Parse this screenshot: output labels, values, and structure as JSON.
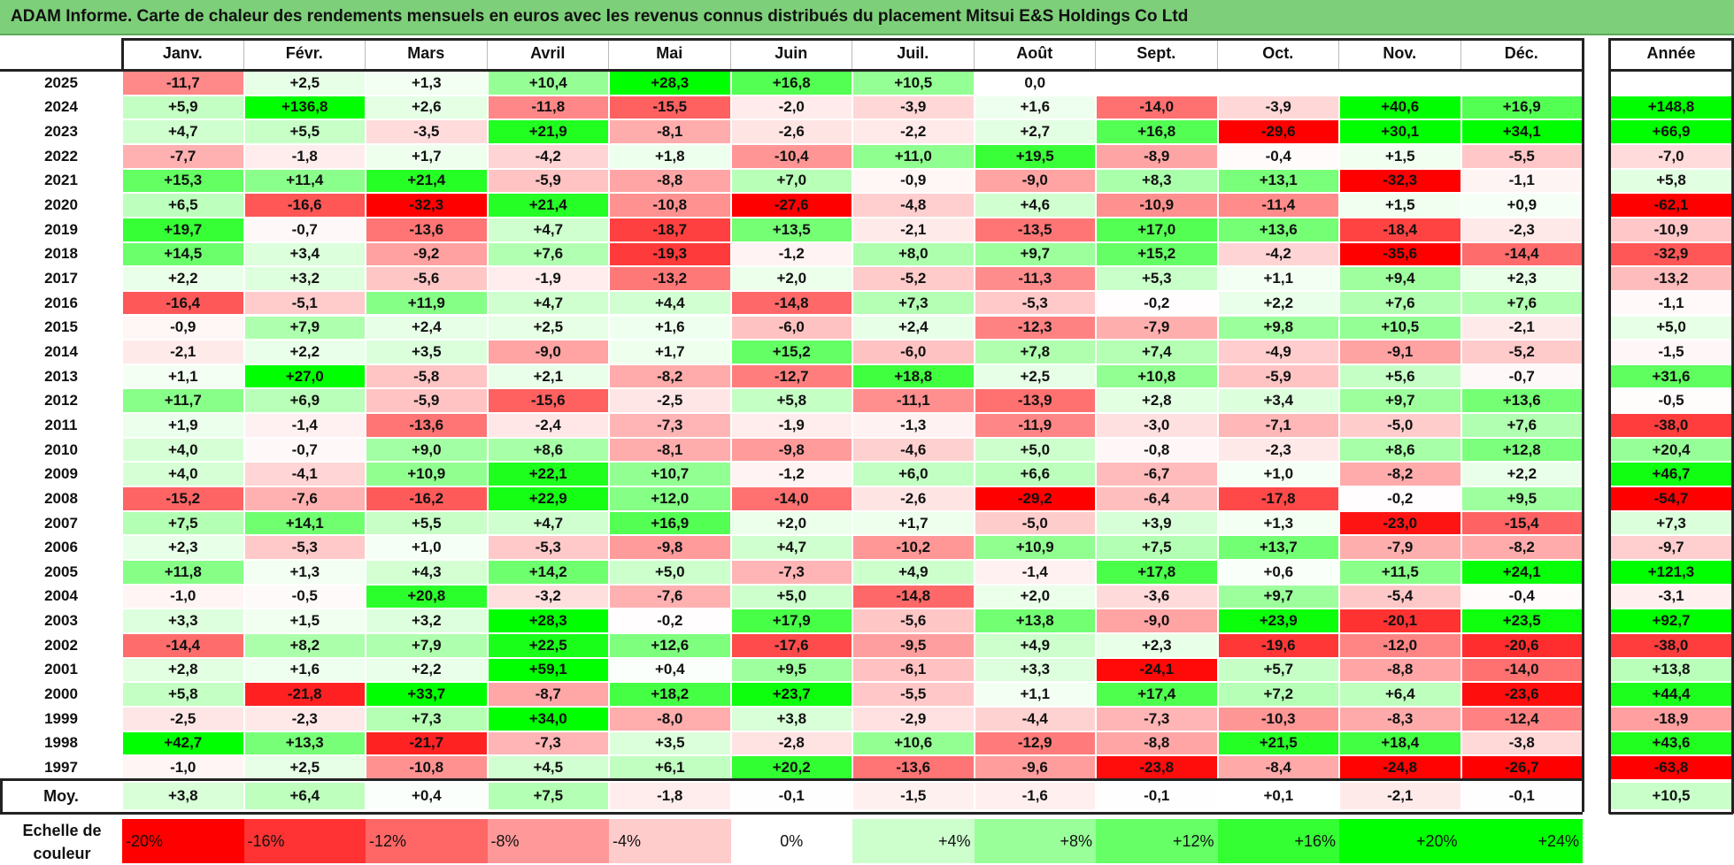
{
  "title": "ADAM Informe. Carte de chaleur des rendements mensuels en euros avec les revenus connus distribués du placement Mitsui E&S Holdings Co Ltd",
  "colors": {
    "title_bar": "#7dcf79",
    "max_negative": "#ff0000",
    "neutral": "#ffffff",
    "max_positive": "#00ff00"
  },
  "year_header": "Année",
  "avg_label": "Moy.",
  "scale_title": "Echelle de couleur",
  "chart_data": {
    "type": "heatmap",
    "title": "ADAM Informe. Carte de chaleur des rendements mensuels en euros avec les revenus connus distribués du placement Mitsui E&S Holdings Co Ltd",
    "columns": [
      "Janv.",
      "Févr.",
      "Mars",
      "Avril",
      "Mai",
      "Juin",
      "Juil.",
      "Août",
      "Sept.",
      "Oct.",
      "Nov.",
      "Déc."
    ],
    "rows": [
      {
        "year": "2025",
        "values": [
          "-11,7",
          "+2,5",
          "+1,3",
          "+10,4",
          "+28,3",
          "+16,8",
          "+10,5",
          "0,0",
          "",
          "",
          "",
          ""
        ],
        "annual": ""
      },
      {
        "year": "2024",
        "values": [
          "+5,9",
          "+136,8",
          "+2,6",
          "-11,8",
          "-15,5",
          "-2,0",
          "-3,9",
          "+1,6",
          "-14,0",
          "-3,9",
          "+40,6",
          "+16,9"
        ],
        "annual": "+148,8"
      },
      {
        "year": "2023",
        "values": [
          "+4,7",
          "+5,5",
          "-3,5",
          "+21,9",
          "-8,1",
          "-2,6",
          "-2,2",
          "+2,7",
          "+16,8",
          "-29,6",
          "+30,1",
          "+34,1"
        ],
        "annual": "+66,9"
      },
      {
        "year": "2022",
        "values": [
          "-7,7",
          "-1,8",
          "+1,7",
          "-4,2",
          "+1,8",
          "-10,4",
          "+11,0",
          "+19,5",
          "-8,9",
          "-0,4",
          "+1,5",
          "-5,5"
        ],
        "annual": "-7,0"
      },
      {
        "year": "2021",
        "values": [
          "+15,3",
          "+11,4",
          "+21,4",
          "-5,9",
          "-8,8",
          "+7,0",
          "-0,9",
          "-9,0",
          "+8,3",
          "+13,1",
          "-32,3",
          "-1,1"
        ],
        "annual": "+5,8"
      },
      {
        "year": "2020",
        "values": [
          "+6,5",
          "-16,6",
          "-32,3",
          "+21,4",
          "-10,8",
          "-27,6",
          "-4,8",
          "+4,6",
          "-10,9",
          "-11,4",
          "+1,5",
          "+0,9"
        ],
        "annual": "-62,1"
      },
      {
        "year": "2019",
        "values": [
          "+19,7",
          "-0,7",
          "-13,6",
          "+4,7",
          "-18,7",
          "+13,5",
          "-2,1",
          "-13,5",
          "+17,0",
          "+13,6",
          "-18,4",
          "-2,3"
        ],
        "annual": "-10,9"
      },
      {
        "year": "2018",
        "values": [
          "+14,5",
          "+3,4",
          "-9,2",
          "+7,6",
          "-19,3",
          "-1,2",
          "+8,0",
          "+9,7",
          "+15,2",
          "-4,2",
          "-35,6",
          "-14,4"
        ],
        "annual": "-32,9"
      },
      {
        "year": "2017",
        "values": [
          "+2,2",
          "+3,2",
          "-5,6",
          "-1,9",
          "-13,2",
          "+2,0",
          "-5,2",
          "-11,3",
          "+5,3",
          "+1,1",
          "+9,4",
          "+2,3"
        ],
        "annual": "-13,2"
      },
      {
        "year": "2016",
        "values": [
          "-16,4",
          "-5,1",
          "+11,9",
          "+4,7",
          "+4,4",
          "-14,8",
          "+7,3",
          "-5,3",
          "-0,2",
          "+2,2",
          "+7,6",
          "+7,6"
        ],
        "annual": "-1,1"
      },
      {
        "year": "2015",
        "values": [
          "-0,9",
          "+7,9",
          "+2,4",
          "+2,5",
          "+1,6",
          "-6,0",
          "+2,4",
          "-12,3",
          "-7,9",
          "+9,8",
          "+10,5",
          "-2,1"
        ],
        "annual": "+5,0"
      },
      {
        "year": "2014",
        "values": [
          "-2,1",
          "+2,2",
          "+3,5",
          "-9,0",
          "+1,7",
          "+15,2",
          "-6,0",
          "+7,8",
          "+7,4",
          "-4,9",
          "-9,1",
          "-5,2"
        ],
        "annual": "-1,5"
      },
      {
        "year": "2013",
        "values": [
          "+1,1",
          "+27,0",
          "-5,8",
          "+2,1",
          "-8,2",
          "-12,7",
          "+18,8",
          "+2,5",
          "+10,8",
          "-5,9",
          "+5,6",
          "-0,7"
        ],
        "annual": "+31,6"
      },
      {
        "year": "2012",
        "values": [
          "+11,7",
          "+6,9",
          "-5,9",
          "-15,6",
          "-2,5",
          "+5,8",
          "-11,1",
          "-13,9",
          "+2,8",
          "+3,4",
          "+9,7",
          "+13,6"
        ],
        "annual": "-0,5"
      },
      {
        "year": "2011",
        "values": [
          "+1,9",
          "-1,4",
          "-13,6",
          "-2,4",
          "-7,3",
          "-1,9",
          "-1,3",
          "-11,9",
          "-3,0",
          "-7,1",
          "-5,0",
          "+7,6"
        ],
        "annual": "-38,0"
      },
      {
        "year": "2010",
        "values": [
          "+4,0",
          "-0,7",
          "+9,0",
          "+8,6",
          "-8,1",
          "-9,8",
          "-4,6",
          "+5,0",
          "-0,8",
          "-2,3",
          "+8,6",
          "+12,8"
        ],
        "annual": "+20,4"
      },
      {
        "year": "2009",
        "values": [
          "+4,0",
          "-4,1",
          "+10,9",
          "+22,1",
          "+10,7",
          "-1,2",
          "+6,0",
          "+6,6",
          "-6,7",
          "+1,0",
          "-8,2",
          "+2,2"
        ],
        "annual": "+46,7"
      },
      {
        "year": "2008",
        "values": [
          "-15,2",
          "-7,6",
          "-16,2",
          "+22,9",
          "+12,0",
          "-14,0",
          "-2,6",
          "-29,2",
          "-6,4",
          "-17,8",
          "-0,2",
          "+9,5"
        ],
        "annual": "-54,7"
      },
      {
        "year": "2007",
        "values": [
          "+7,5",
          "+14,1",
          "+5,5",
          "+4,7",
          "+16,9",
          "+2,0",
          "+1,7",
          "-5,0",
          "+3,9",
          "+1,3",
          "-23,0",
          "-15,4"
        ],
        "annual": "+7,3"
      },
      {
        "year": "2006",
        "values": [
          "+2,3",
          "-5,3",
          "+1,0",
          "-5,3",
          "-9,8",
          "+4,7",
          "-10,2",
          "+10,9",
          "+7,5",
          "+13,7",
          "-7,9",
          "-8,2"
        ],
        "annual": "-9,7"
      },
      {
        "year": "2005",
        "values": [
          "+11,8",
          "+1,3",
          "+4,3",
          "+14,2",
          "+5,0",
          "-7,3",
          "+4,9",
          "-1,4",
          "+17,8",
          "+0,6",
          "+11,5",
          "+24,1"
        ],
        "annual": "+121,3"
      },
      {
        "year": "2004",
        "values": [
          "-1,0",
          "-0,5",
          "+20,8",
          "-3,2",
          "-7,6",
          "+5,0",
          "-14,8",
          "+2,0",
          "-3,6",
          "+9,7",
          "-5,4",
          "-0,4"
        ],
        "annual": "-3,1"
      },
      {
        "year": "2003",
        "values": [
          "+3,3",
          "+1,5",
          "+3,2",
          "+28,3",
          "-0,2",
          "+17,9",
          "-5,6",
          "+13,8",
          "-9,0",
          "+23,9",
          "-20,1",
          "+23,5"
        ],
        "annual": "+92,7"
      },
      {
        "year": "2002",
        "values": [
          "-14,4",
          "+8,2",
          "+7,9",
          "+22,5",
          "+12,6",
          "-17,6",
          "-9,5",
          "+4,9",
          "+2,3",
          "-19,6",
          "-12,0",
          "-20,6"
        ],
        "annual": "-38,0"
      },
      {
        "year": "2001",
        "values": [
          "+2,8",
          "+1,6",
          "+2,2",
          "+59,1",
          "+0,4",
          "+9,5",
          "-6,1",
          "+3,3",
          "-24,1",
          "+5,7",
          "-8,8",
          "-14,0"
        ],
        "annual": "+13,8"
      },
      {
        "year": "2000",
        "values": [
          "+5,8",
          "-21,8",
          "+33,7",
          "-8,7",
          "+18,2",
          "+23,7",
          "-5,5",
          "+1,1",
          "+17,4",
          "+7,2",
          "+6,4",
          "-23,6"
        ],
        "annual": "+44,4"
      },
      {
        "year": "1999",
        "values": [
          "-2,5",
          "-2,3",
          "+7,3",
          "+34,0",
          "-8,0",
          "+3,8",
          "-2,9",
          "-4,4",
          "-7,3",
          "-10,3",
          "-8,3",
          "-12,4"
        ],
        "annual": "-18,9"
      },
      {
        "year": "1998",
        "values": [
          "+42,7",
          "+13,3",
          "-21,7",
          "-7,3",
          "+3,5",
          "-2,8",
          "+10,6",
          "-12,9",
          "-8,8",
          "+21,5",
          "+18,4",
          "-3,8"
        ],
        "annual": "+43,6"
      },
      {
        "year": "1997",
        "values": [
          "-1,0",
          "+2,5",
          "-10,8",
          "+4,5",
          "+6,1",
          "+20,2",
          "-13,6",
          "-9,6",
          "-23,8",
          "-8,4",
          "-24,8",
          "-26,7"
        ],
        "annual": "-63,8"
      }
    ],
    "average": {
      "values": [
        "+3,8",
        "+6,4",
        "+0,4",
        "+7,5",
        "-1,8",
        "-0,1",
        "-1,5",
        "-1,6",
        "-0,1",
        "+0,1",
        "-2,1",
        "-0,1"
      ],
      "annual": "+10,5"
    },
    "color_scale": [
      "-20%",
      "-16%",
      "-12%",
      "-8%",
      "-4%",
      "0%",
      "+4%",
      "+8%",
      "+12%",
      "+16%",
      "+20%",
      "+24%"
    ]
  }
}
